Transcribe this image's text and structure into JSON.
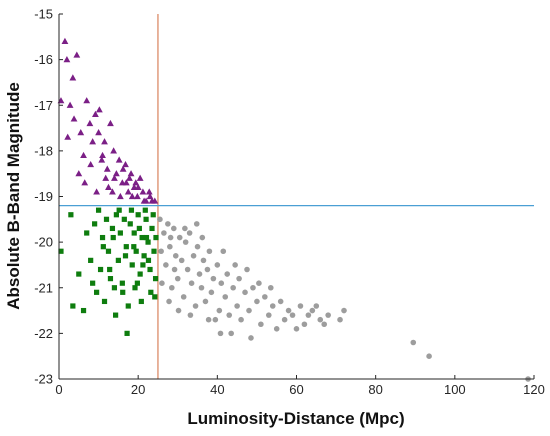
{
  "chart_data": {
    "type": "scatter",
    "xlabel": "Luminosity-Distance (Mpc)",
    "ylabel": "Absolute B-Band Magnitude",
    "xlim": [
      0,
      120
    ],
    "ylim": [
      -15,
      -23
    ],
    "y_inverted": true,
    "x_ticks": [
      0,
      20,
      40,
      60,
      80,
      100,
      120
    ],
    "y_ticks": [
      -15,
      -16,
      -17,
      -18,
      -19,
      -20,
      -21,
      -22,
      -23
    ],
    "grid": false,
    "legend": "none",
    "reference_lines": [
      {
        "orientation": "vertical",
        "x": 25,
        "color": "#d9825b"
      },
      {
        "orientation": "horizontal",
        "y": -19.2,
        "color": "#4a9fd4"
      }
    ],
    "series": [
      {
        "marker": "triangle",
        "color": "#7b1f86",
        "points": [
          [
            0.5,
            -16.9
          ],
          [
            1.5,
            -15.6
          ],
          [
            2,
            -16
          ],
          [
            2.8,
            -17
          ],
          [
            3.5,
            -16.4
          ],
          [
            4.5,
            -15.9
          ],
          [
            2.2,
            -17.7
          ],
          [
            3.8,
            -17.3
          ],
          [
            5.5,
            -17.6
          ],
          [
            6.2,
            -18.1
          ],
          [
            7,
            -16.9
          ],
          [
            7.8,
            -17.4
          ],
          [
            8.5,
            -17.8
          ],
          [
            9.2,
            -17.2
          ],
          [
            10,
            -17.6
          ],
          [
            10.8,
            -18.2
          ],
          [
            11.5,
            -17.8
          ],
          [
            12.2,
            -18.4
          ],
          [
            13,
            -17.4
          ],
          [
            13.8,
            -18
          ],
          [
            14.5,
            -18.5
          ],
          [
            15.2,
            -18.2
          ],
          [
            16,
            -18.7
          ],
          [
            16.8,
            -18.3
          ],
          [
            17.5,
            -18.9
          ],
          [
            18.2,
            -18.5
          ],
          [
            19,
            -18.8
          ],
          [
            19.8,
            -19
          ],
          [
            20.5,
            -18.6
          ],
          [
            21.2,
            -18.9
          ],
          [
            22,
            -19.1
          ],
          [
            22.8,
            -18.9
          ],
          [
            23.5,
            -19.1
          ],
          [
            5,
            -18.5
          ],
          [
            6.5,
            -18.7
          ],
          [
            8,
            -18.3
          ],
          [
            9.5,
            -18.9
          ],
          [
            11,
            -18.1
          ],
          [
            12.5,
            -18.8
          ],
          [
            14,
            -18.6
          ],
          [
            15.5,
            -19
          ],
          [
            17,
            -18.7
          ],
          [
            18.5,
            -19
          ],
          [
            20,
            -18.8
          ],
          [
            21.5,
            -19.1
          ],
          [
            23,
            -19
          ],
          [
            13.5,
            -18.9
          ],
          [
            16.2,
            -18.4
          ],
          [
            19.4,
            -18.7
          ],
          [
            17.8,
            -18.6
          ],
          [
            10.2,
            -17.1
          ],
          [
            24.2,
            -19.1
          ],
          [
            11.8,
            -18.6
          ]
        ]
      },
      {
        "marker": "square",
        "color": "#0e7d0e",
        "points": [
          [
            0.5,
            -20.2
          ],
          [
            3,
            -19.4
          ],
          [
            3.5,
            -21.4
          ],
          [
            5,
            -20.7
          ],
          [
            6.2,
            -21.5
          ],
          [
            7,
            -19.8
          ],
          [
            8,
            -20.4
          ],
          [
            8.5,
            -20.9
          ],
          [
            9,
            -19.6
          ],
          [
            9.5,
            -21.1
          ],
          [
            10,
            -19.3
          ],
          [
            10.5,
            -20.6
          ],
          [
            11,
            -19.9
          ],
          [
            11.5,
            -21.3
          ],
          [
            12,
            -19.5
          ],
          [
            12.5,
            -20.2
          ],
          [
            13,
            -20.8
          ],
          [
            13.5,
            -19.7
          ],
          [
            14,
            -21
          ],
          [
            14.5,
            -19.4
          ],
          [
            15,
            -20.4
          ],
          [
            15.5,
            -19.8
          ],
          [
            16,
            -20.9
          ],
          [
            16.5,
            -19.5
          ],
          [
            17,
            -20.1
          ],
          [
            17.5,
            -21.4
          ],
          [
            18,
            -19.6
          ],
          [
            18.5,
            -20.5
          ],
          [
            19,
            -19.8
          ],
          [
            19.5,
            -20.2
          ],
          [
            20,
            -19.4
          ],
          [
            20.5,
            -20.7
          ],
          [
            21,
            -19.9
          ],
          [
            21.5,
            -20.3
          ],
          [
            22,
            -19.5
          ],
          [
            22.5,
            -20
          ],
          [
            23,
            -20.6
          ],
          [
            23.5,
            -19.7
          ],
          [
            24,
            -20.2
          ],
          [
            24.5,
            -19.9
          ],
          [
            15.2,
            -19.3
          ],
          [
            18.3,
            -19.3
          ],
          [
            21.8,
            -19.3
          ],
          [
            12.8,
            -20.6
          ],
          [
            16.8,
            -20.3
          ],
          [
            19.8,
            -20.9
          ],
          [
            23.2,
            -21.1
          ],
          [
            20.8,
            -21.3
          ],
          [
            14.3,
            -21.6
          ],
          [
            17.2,
            -22
          ],
          [
            24.2,
            -21.2
          ],
          [
            22.6,
            -20.4
          ],
          [
            18.9,
            -20.1
          ],
          [
            13.7,
            -19.9
          ],
          [
            11.2,
            -20.1
          ],
          [
            16.1,
            -21.1
          ],
          [
            23.8,
            -19.4
          ],
          [
            20.3,
            -19.7
          ],
          [
            22.1,
            -19.9
          ],
          [
            19.2,
            -21
          ],
          [
            24.4,
            -20.8
          ],
          [
            21.2,
            -20.5
          ]
        ]
      },
      {
        "marker": "circle",
        "color": "#9d9d9d",
        "points": [
          [
            25.5,
            -19.5
          ],
          [
            26.5,
            -19.8
          ],
          [
            27,
            -20.5
          ],
          [
            27.5,
            -19.6
          ],
          [
            28,
            -20.1
          ],
          [
            28.5,
            -21
          ],
          [
            29,
            -19.7
          ],
          [
            29.5,
            -20.3
          ],
          [
            30,
            -20.8
          ],
          [
            30.5,
            -19.9
          ],
          [
            31,
            -20.4
          ],
          [
            31.5,
            -21.2
          ],
          [
            32,
            -20
          ],
          [
            32.5,
            -20.6
          ],
          [
            33,
            -19.8
          ],
          [
            33.5,
            -20.9
          ],
          [
            34,
            -20.3
          ],
          [
            34.5,
            -21.4
          ],
          [
            35,
            -20.1
          ],
          [
            35.5,
            -20.7
          ],
          [
            36,
            -21
          ],
          [
            36.5,
            -20.4
          ],
          [
            37,
            -21.3
          ],
          [
            37.5,
            -20.6
          ],
          [
            38,
            -20.2
          ],
          [
            38.5,
            -21.1
          ],
          [
            39,
            -20.8
          ],
          [
            40,
            -20.5
          ],
          [
            40.5,
            -21.5
          ],
          [
            41,
            -20.9
          ],
          [
            42,
            -21.2
          ],
          [
            42.5,
            -20.7
          ],
          [
            43,
            -21.6
          ],
          [
            44,
            -21
          ],
          [
            45,
            -21.4
          ],
          [
            45.5,
            -20.8
          ],
          [
            46,
            -21.7
          ],
          [
            47,
            -21.1
          ],
          [
            48,
            -21.5
          ],
          [
            49,
            -21
          ],
          [
            50,
            -21.3
          ],
          [
            51,
            -21.8
          ],
          [
            52,
            -21.2
          ],
          [
            53,
            -21.6
          ],
          [
            54,
            -21.4
          ],
          [
            55,
            -21.9
          ],
          [
            56,
            -21.3
          ],
          [
            57,
            -21.7
          ],
          [
            58,
            -21.5
          ],
          [
            59,
            -21.6
          ],
          [
            60,
            -21.9
          ],
          [
            61,
            -21.4
          ],
          [
            62,
            -21.8
          ],
          [
            63,
            -21.6
          ],
          [
            64,
            -21.5
          ],
          [
            65,
            -21.4
          ],
          [
            66,
            -21.7
          ],
          [
            67,
            -21.8
          ],
          [
            68,
            -21.6
          ],
          [
            71,
            -21.7
          ],
          [
            72,
            -21.5
          ],
          [
            26,
            -20.9
          ],
          [
            27.8,
            -21.3
          ],
          [
            29.2,
            -20.6
          ],
          [
            31.8,
            -19.7
          ],
          [
            33.2,
            -21.6
          ],
          [
            36.2,
            -19.9
          ],
          [
            39.5,
            -21.7
          ],
          [
            41.5,
            -20.2
          ],
          [
            44.5,
            -20.5
          ],
          [
            47.5,
            -20.6
          ],
          [
            50.5,
            -20.9
          ],
          [
            53.5,
            -21
          ],
          [
            43.5,
            -22
          ],
          [
            48.5,
            -22.1
          ],
          [
            89.5,
            -22.2
          ],
          [
            93.5,
            -22.5
          ],
          [
            118.5,
            -23
          ],
          [
            25.8,
            -20.2
          ],
          [
            28.2,
            -19.9
          ],
          [
            30.2,
            -21.5
          ],
          [
            34.8,
            -19.6
          ],
          [
            37.8,
            -21.7
          ],
          [
            40.8,
            -22
          ]
        ]
      }
    ]
  }
}
